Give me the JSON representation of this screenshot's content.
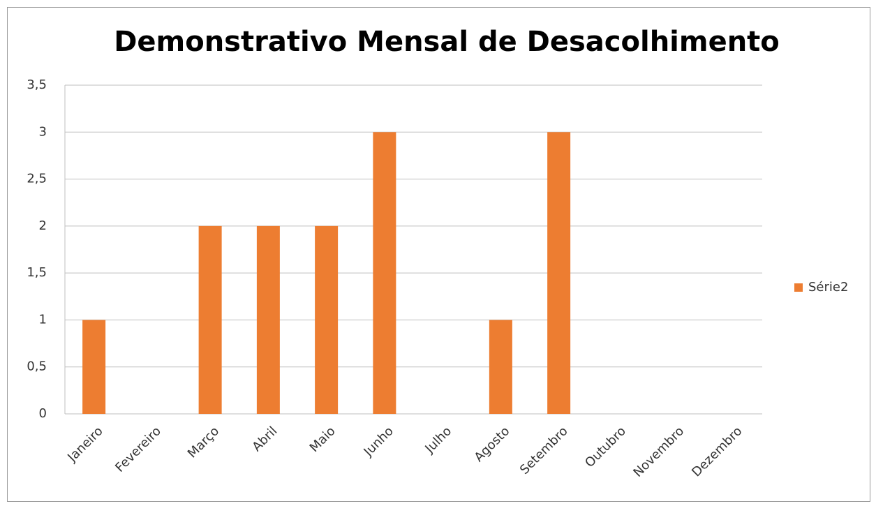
{
  "chart_data": {
    "type": "bar",
    "title": "Demonstrativo Mensal de Desacolhimento",
    "categories": [
      "Janeiro",
      "Fevereiro",
      "Março",
      "Abril",
      "Maio",
      "Junho",
      "Julho",
      "Agosto",
      "Setembro",
      "Outubro",
      "Novembro",
      "Dezembro"
    ],
    "series": [
      {
        "name": "Série2",
        "color": "#ed7d31",
        "values": [
          1,
          0,
          2,
          2,
          2,
          3,
          0,
          1,
          3,
          0,
          0,
          0
        ]
      }
    ],
    "ylim": [
      0,
      3.5
    ],
    "yticks": [
      0,
      {
        "value": 0.5,
        "label": "0,5"
      },
      1,
      {
        "value": 1.5,
        "label": "1,5"
      },
      2,
      {
        "value": 2.5,
        "label": "2,5"
      },
      3,
      {
        "value": 3.5,
        "label": "3,5"
      }
    ],
    "grid": true,
    "legend": "right"
  }
}
